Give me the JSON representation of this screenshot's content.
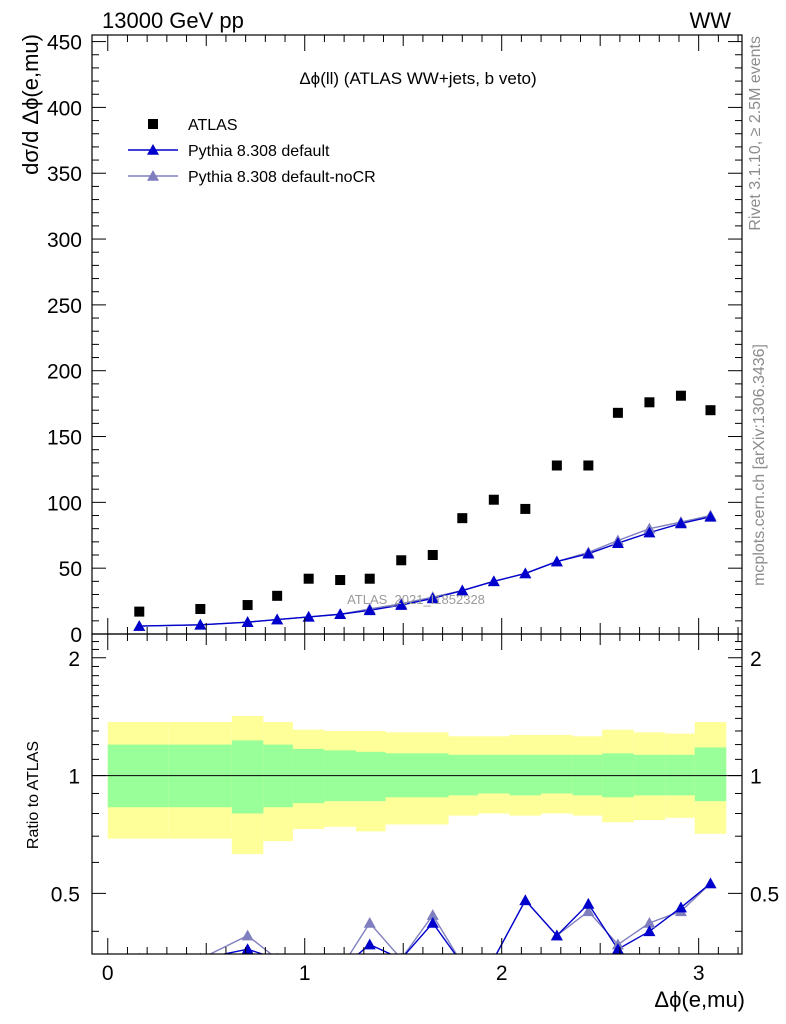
{
  "header": {
    "left": "13000 GeV pp",
    "right": "WW"
  },
  "side_labels": {
    "rivet": "Rivet 3.1.10, ≥ 2.5M events",
    "mcplots": "mcplots.cern.ch [arXiv:1306.3436]"
  },
  "chart_data": {
    "type": "scatter",
    "title": "Δϕ(ll) (ATLAS WW+jets, b veto)",
    "xlabel": "Δϕ(e,mu)",
    "ylabel": "dσ/d Δϕ(e,mu)",
    "ratio_ylabel": "Ratio to ATLAS",
    "watermark": "ATLAS_2021_I1852328",
    "xlim": [
      -0.08,
      3.22
    ],
    "ylim": [
      0,
      455
    ],
    "ratio_ylim": [
      0.35,
      2.3
    ],
    "x_ticks": [
      0,
      1,
      2,
      3
    ],
    "y_ticks": [
      0,
      50,
      100,
      150,
      200,
      250,
      300,
      350,
      400,
      450
    ],
    "ratio_ticks": [
      0.5,
      1,
      2
    ],
    "legend_position": "top-left",
    "x": [
      0.16,
      0.47,
      0.71,
      0.86,
      1.02,
      1.18,
      1.33,
      1.49,
      1.65,
      1.8,
      1.96,
      2.12,
      2.28,
      2.44,
      2.59,
      2.75,
      2.91,
      3.06
    ],
    "x_edges": [
      0,
      0.31,
      0.63,
      0.79,
      0.94,
      1.1,
      1.26,
      1.41,
      1.57,
      1.73,
      1.88,
      2.04,
      2.2,
      2.36,
      2.51,
      2.67,
      2.83,
      2.98,
      3.14
    ],
    "series": [
      {
        "name": "ATLAS",
        "style": "marker",
        "marker": "square",
        "color": "#000000",
        "values": [
          17,
          19,
          22,
          29,
          42,
          41,
          42,
          56,
          60,
          88,
          102,
          95,
          128,
          128,
          168,
          176,
          181,
          170
        ]
      },
      {
        "name": "Pythia 8.308 default",
        "style": "line-marker",
        "marker": "triangle",
        "color": "#0000cc",
        "values": [
          6,
          7,
          9,
          11,
          13,
          15,
          18,
          22,
          27,
          33,
          40,
          46,
          55,
          61,
          69,
          77,
          84,
          89
        ]
      },
      {
        "name": "Pythia 8.308 default-noCR",
        "style": "line-marker",
        "marker": "triangle",
        "color": "#7f7fbf",
        "values": [
          6,
          7,
          9,
          11,
          13,
          15,
          19,
          23,
          28,
          33,
          40,
          46,
          55,
          62,
          71,
          80,
          85,
          90
        ]
      }
    ],
    "ratio": {
      "band_inner": [
        [
          0.83,
          1.2
        ],
        [
          0.83,
          1.2
        ],
        [
          0.8,
          1.23
        ],
        [
          0.83,
          1.2
        ],
        [
          0.85,
          1.17
        ],
        [
          0.86,
          1.16
        ],
        [
          0.86,
          1.15
        ],
        [
          0.88,
          1.14
        ],
        [
          0.88,
          1.14
        ],
        [
          0.89,
          1.13
        ],
        [
          0.9,
          1.13
        ],
        [
          0.89,
          1.13
        ],
        [
          0.9,
          1.13
        ],
        [
          0.89,
          1.13
        ],
        [
          0.88,
          1.14
        ],
        [
          0.89,
          1.13
        ],
        [
          0.89,
          1.13
        ],
        [
          0.86,
          1.18
        ]
      ],
      "band_outer": [
        [
          0.69,
          1.37
        ],
        [
          0.69,
          1.37
        ],
        [
          0.63,
          1.42
        ],
        [
          0.68,
          1.37
        ],
        [
          0.73,
          1.31
        ],
        [
          0.74,
          1.3
        ],
        [
          0.72,
          1.3
        ],
        [
          0.75,
          1.29
        ],
        [
          0.75,
          1.29
        ],
        [
          0.79,
          1.26
        ],
        [
          0.8,
          1.26
        ],
        [
          0.79,
          1.27
        ],
        [
          0.8,
          1.27
        ],
        [
          0.79,
          1.26
        ],
        [
          0.76,
          1.31
        ],
        [
          0.77,
          1.29
        ],
        [
          0.78,
          1.28
        ],
        [
          0.71,
          1.37
        ]
      ],
      "series": [
        {
          "name": "Pythia 8.308 default",
          "color": "#0000cc",
          "values": [
            0.34,
            0.34,
            0.36,
            0.34,
            0.3,
            0.32,
            0.37,
            0.34,
            0.42,
            0.33,
            0.34,
            0.48,
            0.39,
            0.47,
            0.36,
            0.4,
            0.46,
            0.53
          ]
        },
        {
          "name": "Pythia 8.308 default-noCR",
          "color": "#7f7fbf",
          "values": [
            0.34,
            0.34,
            0.39,
            0.34,
            0.3,
            0.32,
            0.42,
            0.34,
            0.44,
            0.33,
            0.34,
            0.48,
            0.39,
            0.45,
            0.37,
            0.42,
            0.45,
            0.53
          ]
        }
      ]
    }
  }
}
